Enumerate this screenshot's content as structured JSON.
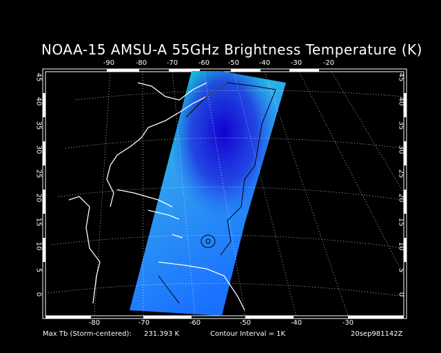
{
  "title": "NOAA-15 AMSU-A 55GHz Brightness Temperature (K)",
  "top_longitudes": [
    "-90",
    "-80",
    "-70",
    "-60",
    "-50",
    "-40",
    "-30",
    "-20"
  ],
  "bottom_longitudes": [
    "-80",
    "-70",
    "-60",
    "-50",
    "-40",
    "-30"
  ],
  "latitudes": [
    "45",
    "40",
    "35",
    "30",
    "25",
    "20",
    "15",
    "10",
    "5",
    "0"
  ],
  "footer": {
    "max_tb_label": "Max Tb (Storm-centered):",
    "max_tb_value": "231.393 K",
    "contour_interval": "Contour Interval = 1K",
    "timestamp": "20sep981142Z"
  },
  "colors": {
    "background": "#000000",
    "coastline": "#ffffff",
    "swath_warm": "#00ff40",
    "swath_mid": "#20a0ff",
    "swath_cold": "#1010e0",
    "contour": "#000000"
  }
}
